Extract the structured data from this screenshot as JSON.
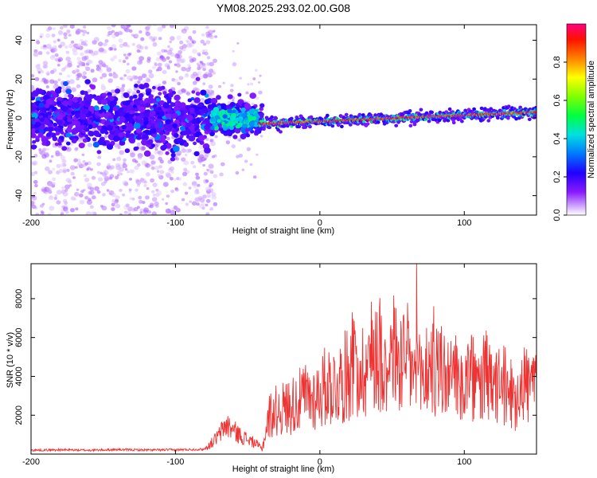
{
  "title": "YM08.2025.293.02.00.G08",
  "chart_data": [
    {
      "type": "heatmap",
      "title": "YM08.2025.293.02.00.G08",
      "xlabel": "Height of straight line (km)",
      "ylabel": "Frequency (Hz)",
      "xlim": [
        -200,
        150
      ],
      "ylim": [
        -50,
        48
      ],
      "xticks": [
        -200,
        -100,
        0,
        100
      ],
      "yticks": [
        -40,
        -20,
        0,
        20,
        40
      ],
      "colorbar": {
        "label": "Normalized spectral amplitude",
        "range": [
          0,
          1
        ],
        "ticks": [
          0.0,
          0.2,
          0.4,
          0.6,
          0.8
        ],
        "tick_labels": [
          "0.0",
          "0.2",
          "0.4",
          "0.6",
          "0.8"
        ],
        "colors": [
          "#ffffff",
          "#c8a0ff",
          "#7f00ff",
          "#0000ff",
          "#00b4ff",
          "#00ff80",
          "#80ff00",
          "#ffff00",
          "#ff8000",
          "#ff0000",
          "#ff0080"
        ]
      },
      "regions": [
        {
          "description": "broadband scattered energy",
          "x_range": [
            -200,
            -75
          ],
          "freq_range": [
            -50,
            48
          ],
          "amplitude": 0.1
        },
        {
          "description": "dense band",
          "x_range": [
            -200,
            -40
          ],
          "freq_range": [
            -10,
            10
          ],
          "amplitude": 0.2
        },
        {
          "description": "bright band",
          "x_range": [
            -75,
            -45
          ],
          "freq_range": [
            -4,
            4
          ],
          "amplitude": 0.4
        },
        {
          "description": "narrow line",
          "x_range": [
            -40,
            150
          ],
          "freq_center_start": -3,
          "freq_center_end": 3,
          "amplitude": 0.95
        }
      ]
    },
    {
      "type": "line",
      "xlabel": "Height of straight line (km)",
      "ylabel": "SNR (10 * v/v)",
      "xlim": [
        -200,
        150
      ],
      "ylim": [
        0,
        9800
      ],
      "xticks": [
        -200,
        -100,
        0,
        100
      ],
      "yticks": [
        2000,
        4000,
        6000,
        8000
      ],
      "series": [
        {
          "name": "SNR",
          "color": "#ee3333",
          "x": [
            -200,
            -180,
            -160,
            -140,
            -120,
            -100,
            -80,
            -75,
            -70,
            -65,
            -60,
            -55,
            -50,
            -45,
            -40,
            -35,
            -30,
            -25,
            -20,
            -15,
            -10,
            -5,
            0,
            5,
            10,
            15,
            20,
            25,
            30,
            35,
            40,
            45,
            50,
            55,
            60,
            65,
            70,
            75,
            80,
            85,
            90,
            95,
            100,
            105,
            110,
            115,
            120,
            125,
            130,
            135,
            140,
            145,
            150
          ],
          "values": [
            200,
            220,
            200,
            230,
            210,
            220,
            250,
            600,
            1000,
            1600,
            1300,
            1000,
            800,
            600,
            300,
            2200,
            2500,
            2600,
            2800,
            3000,
            3300,
            3200,
            3500,
            4000,
            3900,
            4200,
            4600,
            5200,
            4800,
            5500,
            6300,
            5000,
            6000,
            5200,
            5500,
            4600,
            4200,
            5100,
            4600,
            4900,
            4000,
            4300,
            4100,
            4400,
            3700,
            4500,
            3600,
            4000,
            3700,
            3300,
            4200,
            3900,
            4100
          ]
        }
      ]
    }
  ]
}
